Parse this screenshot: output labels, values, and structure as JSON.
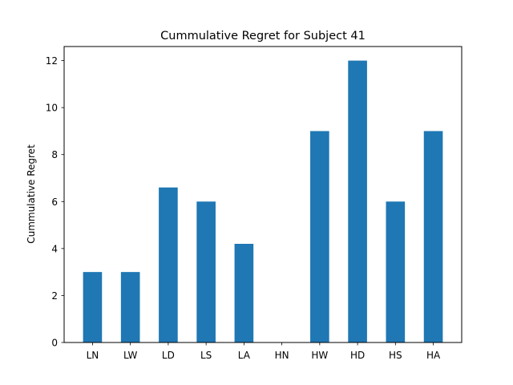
{
  "chart_data": {
    "type": "bar",
    "title": "Cummulative Regret for Subject 41",
    "xlabel": "",
    "ylabel": "Cummulative Regret",
    "categories": [
      "LN",
      "LW",
      "LD",
      "LS",
      "LA",
      "HN",
      "HW",
      "HD",
      "HS",
      "HA"
    ],
    "values": [
      3,
      3,
      6.6,
      6,
      4.2,
      0,
      9,
      12,
      6,
      9
    ],
    "ylim": [
      0,
      12.6
    ],
    "yticks": [
      0,
      2,
      4,
      6,
      8,
      10,
      12
    ],
    "bar_color": "#1f77b4",
    "grid": false,
    "legend": "none"
  }
}
